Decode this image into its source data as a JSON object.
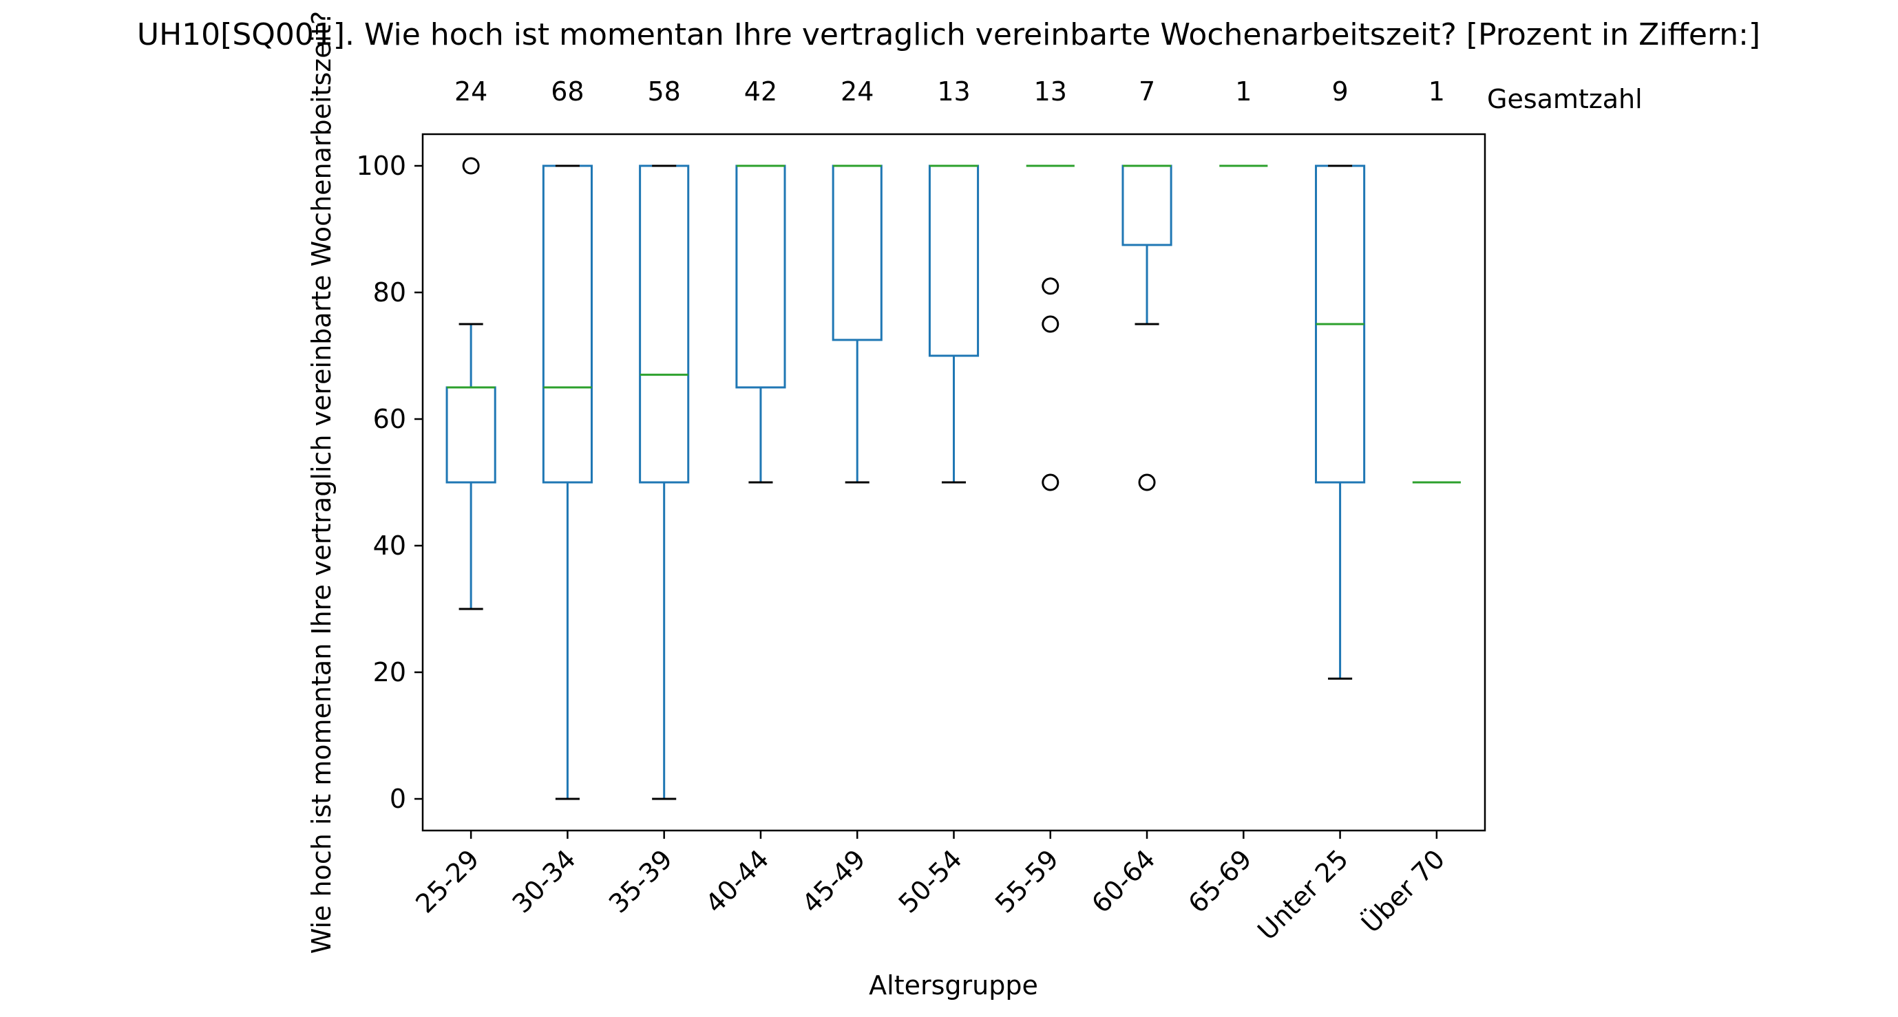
{
  "chart_data": {
    "type": "box",
    "title": "UH10[SQ001]. Wie hoch ist momentan Ihre vertraglich vereinbarte Wochenarbeitszeit?  [Prozent in Ziffern:]",
    "xlabel": "Altersgruppe",
    "ylabel": "Wie hoch ist momentan Ihre vertraglich vereinbarte Wochenarbeitszeit?",
    "ylim": [
      -5,
      105
    ],
    "yticks": [
      0,
      20,
      40,
      60,
      80,
      100
    ],
    "counts_label": "Gesamtzahl",
    "grid": false,
    "categories": [
      "25-29",
      "30-34",
      "35-39",
      "40-44",
      "45-49",
      "50-54",
      "55-59",
      "60-64",
      "65-69",
      "Unter 25",
      "Über 70"
    ],
    "counts": [
      24,
      68,
      58,
      42,
      24,
      13,
      13,
      7,
      1,
      9,
      1
    ],
    "boxes": [
      {
        "whislo": 30,
        "q1": 50,
        "med": 65,
        "q3": 65,
        "whishi": 75,
        "fliers": [
          100
        ]
      },
      {
        "whislo": 0,
        "q1": 50,
        "med": 65,
        "q3": 100,
        "whishi": 100,
        "fliers": []
      },
      {
        "whislo": 0,
        "q1": 50,
        "med": 67,
        "q3": 100,
        "whishi": 100,
        "fliers": []
      },
      {
        "whislo": 50,
        "q1": 65,
        "med": 100,
        "q3": 100,
        "whishi": 100,
        "fliers": []
      },
      {
        "whislo": 50,
        "q1": 72.5,
        "med": 100,
        "q3": 100,
        "whishi": 100,
        "fliers": []
      },
      {
        "whislo": 50,
        "q1": 70,
        "med": 100,
        "q3": 100,
        "whishi": 100,
        "fliers": []
      },
      {
        "whislo": 100,
        "q1": 100,
        "med": 100,
        "q3": 100,
        "whishi": 100,
        "fliers": [
          81,
          75,
          50
        ]
      },
      {
        "whislo": 75,
        "q1": 87.5,
        "med": 100,
        "q3": 100,
        "whishi": 100,
        "fliers": [
          50
        ]
      },
      {
        "whislo": 100,
        "q1": 100,
        "med": 100,
        "q3": 100,
        "whishi": 100,
        "fliers": []
      },
      {
        "whislo": 19,
        "q1": 50,
        "med": 75,
        "q3": 100,
        "whishi": 100,
        "fliers": []
      },
      {
        "whislo": 50,
        "q1": 50,
        "med": 50,
        "q3": 50,
        "whishi": 50,
        "fliers": []
      }
    ],
    "colors": {
      "box": "#1f77b4",
      "median": "#2ca02c",
      "cap": "#000000",
      "flier": "#000000",
      "axis": "#000000"
    }
  }
}
